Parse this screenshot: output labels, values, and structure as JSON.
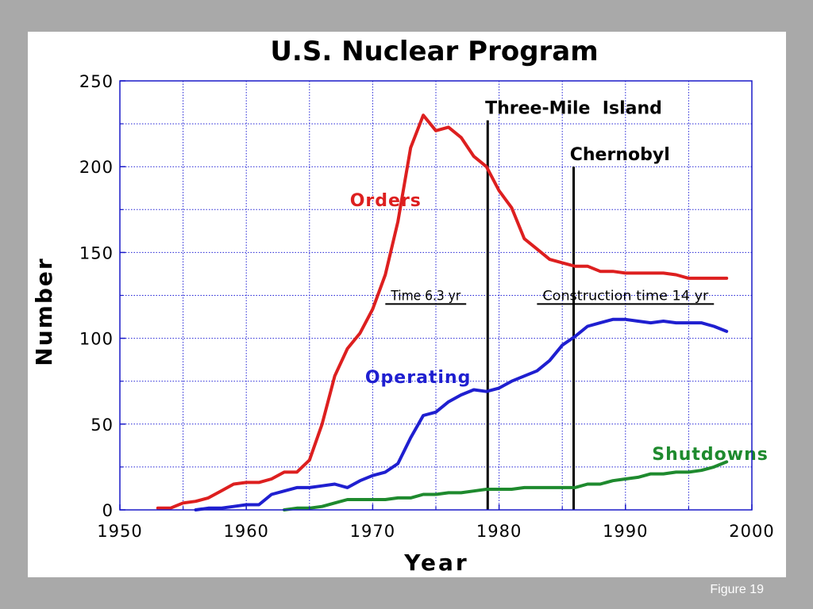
{
  "figure_label": "Figure 19",
  "chart_data": {
    "type": "line",
    "title": "U.S. Nuclear Program",
    "xlabel": "Year",
    "ylabel": "Number",
    "xlim": [
      1950,
      2000
    ],
    "ylim": [
      0,
      250
    ],
    "x_ticks": [
      "1950",
      "1960",
      "1970",
      "1980",
      "1990",
      "2000"
    ],
    "y_ticks": [
      "0",
      "50",
      "100",
      "150",
      "200",
      "250"
    ],
    "grid": true,
    "series": [
      {
        "name": "Orders",
        "color": "#dd1f1f",
        "points": [
          [
            1953,
            1
          ],
          [
            1954,
            1
          ],
          [
            1955,
            4
          ],
          [
            1956,
            5
          ],
          [
            1957,
            7
          ],
          [
            1958,
            11
          ],
          [
            1959,
            15
          ],
          [
            1960,
            16
          ],
          [
            1961,
            16
          ],
          [
            1962,
            18
          ],
          [
            1963,
            22
          ],
          [
            1964,
            22
          ],
          [
            1965,
            29
          ],
          [
            1966,
            50
          ],
          [
            1967,
            78
          ],
          [
            1968,
            94
          ],
          [
            1969,
            103
          ],
          [
            1970,
            117
          ],
          [
            1971,
            137
          ],
          [
            1972,
            168
          ],
          [
            1973,
            211
          ],
          [
            1974,
            230
          ],
          [
            1975,
            221
          ],
          [
            1976,
            223
          ],
          [
            1977,
            217
          ],
          [
            1978,
            206
          ],
          [
            1979,
            200
          ],
          [
            1980,
            186
          ],
          [
            1981,
            176
          ],
          [
            1982,
            158
          ],
          [
            1983,
            152
          ],
          [
            1984,
            146
          ],
          [
            1985,
            144
          ],
          [
            1986,
            142
          ],
          [
            1987,
            142
          ],
          [
            1988,
            139
          ],
          [
            1989,
            139
          ],
          [
            1990,
            138
          ],
          [
            1991,
            138
          ],
          [
            1992,
            138
          ],
          [
            1993,
            138
          ],
          [
            1994,
            137
          ],
          [
            1995,
            135
          ],
          [
            1996,
            135
          ],
          [
            1997,
            135
          ],
          [
            1998,
            135
          ]
        ]
      },
      {
        "name": "Operating",
        "color": "#1f1fd0",
        "points": [
          [
            1956,
            0
          ],
          [
            1957,
            1
          ],
          [
            1958,
            1
          ],
          [
            1959,
            2
          ],
          [
            1960,
            3
          ],
          [
            1961,
            3
          ],
          [
            1962,
            9
          ],
          [
            1963,
            11
          ],
          [
            1964,
            13
          ],
          [
            1965,
            13
          ],
          [
            1966,
            14
          ],
          [
            1967,
            15
          ],
          [
            1968,
            13
          ],
          [
            1969,
            17
          ],
          [
            1970,
            20
          ],
          [
            1971,
            22
          ],
          [
            1972,
            27
          ],
          [
            1973,
            42
          ],
          [
            1974,
            55
          ],
          [
            1975,
            57
          ],
          [
            1976,
            63
          ],
          [
            1977,
            67
          ],
          [
            1978,
            70
          ],
          [
            1979,
            69
          ],
          [
            1980,
            71
          ],
          [
            1981,
            75
          ],
          [
            1982,
            78
          ],
          [
            1983,
            81
          ],
          [
            1984,
            87
          ],
          [
            1985,
            96
          ],
          [
            1986,
            101
          ],
          [
            1987,
            107
          ],
          [
            1988,
            109
          ],
          [
            1989,
            111
          ],
          [
            1990,
            111
          ],
          [
            1991,
            110
          ],
          [
            1992,
            109
          ],
          [
            1993,
            110
          ],
          [
            1994,
            109
          ],
          [
            1995,
            109
          ],
          [
            1996,
            109
          ],
          [
            1997,
            107
          ],
          [
            1998,
            104
          ]
        ]
      },
      {
        "name": "Shutdowns",
        "color": "#1e8a2e",
        "points": [
          [
            1963,
            0
          ],
          [
            1964,
            1
          ],
          [
            1965,
            1
          ],
          [
            1966,
            2
          ],
          [
            1967,
            4
          ],
          [
            1968,
            6
          ],
          [
            1969,
            6
          ],
          [
            1970,
            6
          ],
          [
            1971,
            6
          ],
          [
            1972,
            7
          ],
          [
            1973,
            7
          ],
          [
            1974,
            9
          ],
          [
            1975,
            9
          ],
          [
            1976,
            10
          ],
          [
            1977,
            10
          ],
          [
            1978,
            11
          ],
          [
            1979,
            12
          ],
          [
            1980,
            12
          ],
          [
            1981,
            12
          ],
          [
            1982,
            13
          ],
          [
            1983,
            13
          ],
          [
            1984,
            13
          ],
          [
            1985,
            13
          ],
          [
            1986,
            13
          ],
          [
            1987,
            15
          ],
          [
            1988,
            15
          ],
          [
            1989,
            17
          ],
          [
            1990,
            18
          ],
          [
            1991,
            19
          ],
          [
            1992,
            21
          ],
          [
            1993,
            21
          ],
          [
            1994,
            22
          ],
          [
            1995,
            22
          ],
          [
            1996,
            23
          ],
          [
            1997,
            25
          ],
          [
            1998,
            28
          ]
        ]
      }
    ],
    "series_labels": [
      {
        "text": "Orders",
        "series": "Orders",
        "x": 1968.2,
        "y": 177
      },
      {
        "text": "Operating",
        "series": "Operating",
        "x": 1969.4,
        "y": 74
      },
      {
        "text": "Shutdowns",
        "series": "Shutdowns",
        "x": 1992.1,
        "y": 29
      }
    ],
    "events": [
      {
        "label": "Three-Mile  Island",
        "year": 1979.1,
        "top": 227,
        "label_x": 1978.9,
        "label_y": 229
      },
      {
        "label": "Chernobyl",
        "year": 1985.9,
        "top": 200,
        "label_x": 1985.6,
        "label_y": 202
      }
    ],
    "annotations": [
      {
        "label": "Time 6.3 yr",
        "x_from": 1971,
        "x_to": 1977.4,
        "y": 120
      },
      {
        "label": "Construction time 14 yr",
        "x_from": 1983,
        "x_to": 1997,
        "y": 120
      }
    ]
  }
}
